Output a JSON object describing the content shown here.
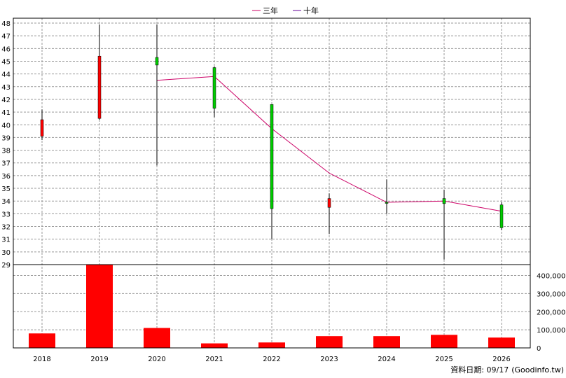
{
  "chart_data": {
    "type": "candlestick+line+bar",
    "legend": [
      {
        "label": "三年",
        "color": "#cc0066"
      },
      {
        "label": "十年",
        "color": "#660099"
      }
    ],
    "legend_position": "top-center",
    "years": [
      "2018",
      "2019",
      "2020",
      "2021",
      "2022",
      "2023",
      "2024",
      "2025",
      "2026"
    ],
    "price_axis": {
      "min": 29,
      "max": 48,
      "ticks": [
        29,
        30,
        31,
        32,
        33,
        34,
        35,
        36,
        37,
        38,
        39,
        40,
        41,
        42,
        43,
        44,
        45,
        46,
        47,
        48
      ]
    },
    "candles": [
      {
        "year": "2018",
        "open": 40.4,
        "close": 39.1,
        "high": 41.2,
        "low": 38.8
      },
      {
        "year": "2019",
        "open": 45.4,
        "close": 40.5,
        "high": 47.9,
        "low": 40.4
      },
      {
        "year": "2020",
        "open": 44.7,
        "close": 45.3,
        "high": 47.9,
        "low": 36.8
      },
      {
        "year": "2021",
        "open": 41.3,
        "close": 44.5,
        "high": 44.6,
        "low": 40.6
      },
      {
        "year": "2022",
        "open": 33.4,
        "close": 41.6,
        "high": 41.6,
        "low": 31.0
      },
      {
        "year": "2023",
        "open": 34.2,
        "close": 33.5,
        "high": 34.6,
        "low": 31.4
      },
      {
        "year": "2024",
        "open": 33.9,
        "close": 33.9,
        "high": 35.7,
        "low": 33.0
      },
      {
        "year": "2025",
        "open": 33.8,
        "close": 34.2,
        "high": 34.9,
        "low": 29.4
      },
      {
        "year": "2026",
        "open": 31.9,
        "close": 33.7,
        "high": 33.9,
        "low": 31.7
      }
    ],
    "up_color": "#00cc00",
    "down_color": "#ff0000",
    "three_year_line": {
      "name": "三年",
      "color": "#cc0066",
      "points": [
        {
          "year": "2020",
          "value": 43.5
        },
        {
          "year": "2021",
          "value": 43.8
        },
        {
          "year": "2022",
          "value": 39.7
        },
        {
          "year": "2023",
          "value": 36.2
        },
        {
          "year": "2024",
          "value": 33.9
        },
        {
          "year": "2025",
          "value": 34.0
        },
        {
          "year": "2026",
          "value": 33.2
        }
      ]
    },
    "volume_axis": {
      "min": 0,
      "max": 460000,
      "ticks": [
        0,
        100000,
        200000,
        300000,
        400000
      ],
      "tick_labels": [
        "0",
        "100,000",
        "200,000",
        "300,000",
        "400,000"
      ]
    },
    "volumes": [
      {
        "year": "2018",
        "value": 80000
      },
      {
        "year": "2019",
        "value": 460000
      },
      {
        "year": "2020",
        "value": 110000
      },
      {
        "year": "2021",
        "value": 25000
      },
      {
        "year": "2022",
        "value": 30000
      },
      {
        "year": "2023",
        "value": 65000
      },
      {
        "year": "2024",
        "value": 65000
      },
      {
        "year": "2025",
        "value": 72000
      },
      {
        "year": "2026",
        "value": 57000
      }
    ],
    "volume_color": "#ff0000",
    "grid": true
  },
  "footer": {
    "label": "資料日期: 09/17",
    "source": "(Goodinfo.tw)"
  }
}
